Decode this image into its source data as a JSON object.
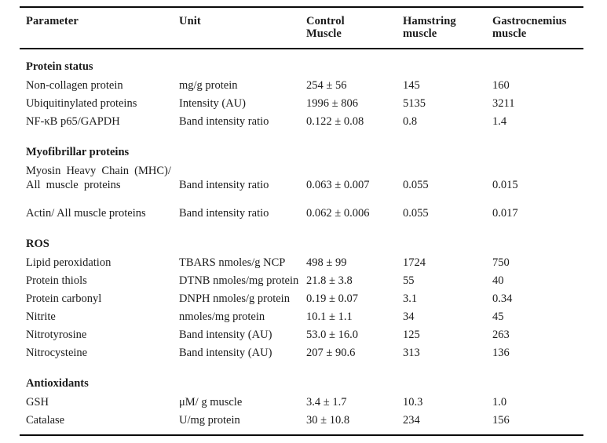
{
  "table": {
    "columns": [
      {
        "label": "Parameter"
      },
      {
        "label": "Unit"
      },
      {
        "label": "Control\nMuscle"
      },
      {
        "label": "Hamstring\nmuscle"
      },
      {
        "label": "Gastrocnemius\nmuscle"
      }
    ],
    "sections": [
      {
        "title": "Protein status",
        "rows": [
          {
            "parameter": "Non-collagen protein",
            "unit": "mg/g protein",
            "control": "254 ± 56",
            "hamstring": "145",
            "gastrocnemius": "160"
          },
          {
            "parameter": "Ubiquitinylated proteins",
            "unit": "Intensity (AU)",
            "control": "1996 ± 806",
            "hamstring": "5135",
            "gastrocnemius": "3211"
          },
          {
            "parameter": "NF-κB p65/GAPDH",
            "unit": "Band intensity ratio",
            "control": "0.122 ± 0.08",
            "hamstring": "0.8",
            "gastrocnemius": "1.4"
          }
        ]
      },
      {
        "title": "Myofibrillar proteins",
        "rows": [
          {
            "parameter": "Myosin Heavy Chain (MHC)/\nAll muscle proteins",
            "unit": "Band intensity ratio",
            "control": "0.063 ± 0.007",
            "hamstring": "0.055",
            "gastrocnemius": "0.015"
          },
          {
            "parameter": "Actin/ All muscle proteins",
            "unit": "Band intensity ratio",
            "control": "0.062 ± 0.006",
            "hamstring": "0.055",
            "gastrocnemius": "0.017"
          }
        ]
      },
      {
        "title": "ROS",
        "rows": [
          {
            "parameter": "Lipid peroxidation",
            "unit": "TBARS nmoles/g NCP",
            "control": "498 ± 99",
            "hamstring": "1724",
            "gastrocnemius": "750"
          },
          {
            "parameter": "Protein thiols",
            "unit": "DTNB nmoles/mg protein",
            "control": "21.8 ± 3.8",
            "hamstring": "55",
            "gastrocnemius": "40"
          },
          {
            "parameter": "Protein carbonyl",
            "unit": "DNPH nmoles/g protein",
            "control": "0.19 ± 0.07",
            "hamstring": "3.1",
            "gastrocnemius": "0.34"
          },
          {
            "parameter": "Nitrite",
            "unit": "nmoles/mg protein",
            "control": "10.1 ± 1.1",
            "hamstring": "34",
            "gastrocnemius": "45"
          },
          {
            "parameter": "Nitrotyrosine",
            "unit": "Band intensity (AU)",
            "control": "53.0 ± 16.0",
            "hamstring": "125",
            "gastrocnemius": "263"
          },
          {
            "parameter": "Nitrocysteine",
            "unit": "Band intensity (AU)",
            "control": "207 ± 90.6",
            "hamstring": "313",
            "gastrocnemius": "136"
          }
        ]
      },
      {
        "title": "Antioxidants",
        "rows": [
          {
            "parameter": "GSH",
            "unit": "μM/ g muscle",
            "control": "3.4 ± 1.7",
            "hamstring": "10.3",
            "gastrocnemius": "1.0"
          },
          {
            "parameter": "Catalase",
            "unit": "U/mg protein",
            "control": "30 ± 10.8",
            "hamstring": "234",
            "gastrocnemius": "156"
          }
        ]
      }
    ]
  },
  "colors": {
    "text": "#1b1b1b",
    "rule": "#0a0a0a",
    "background": "#ffffff"
  }
}
